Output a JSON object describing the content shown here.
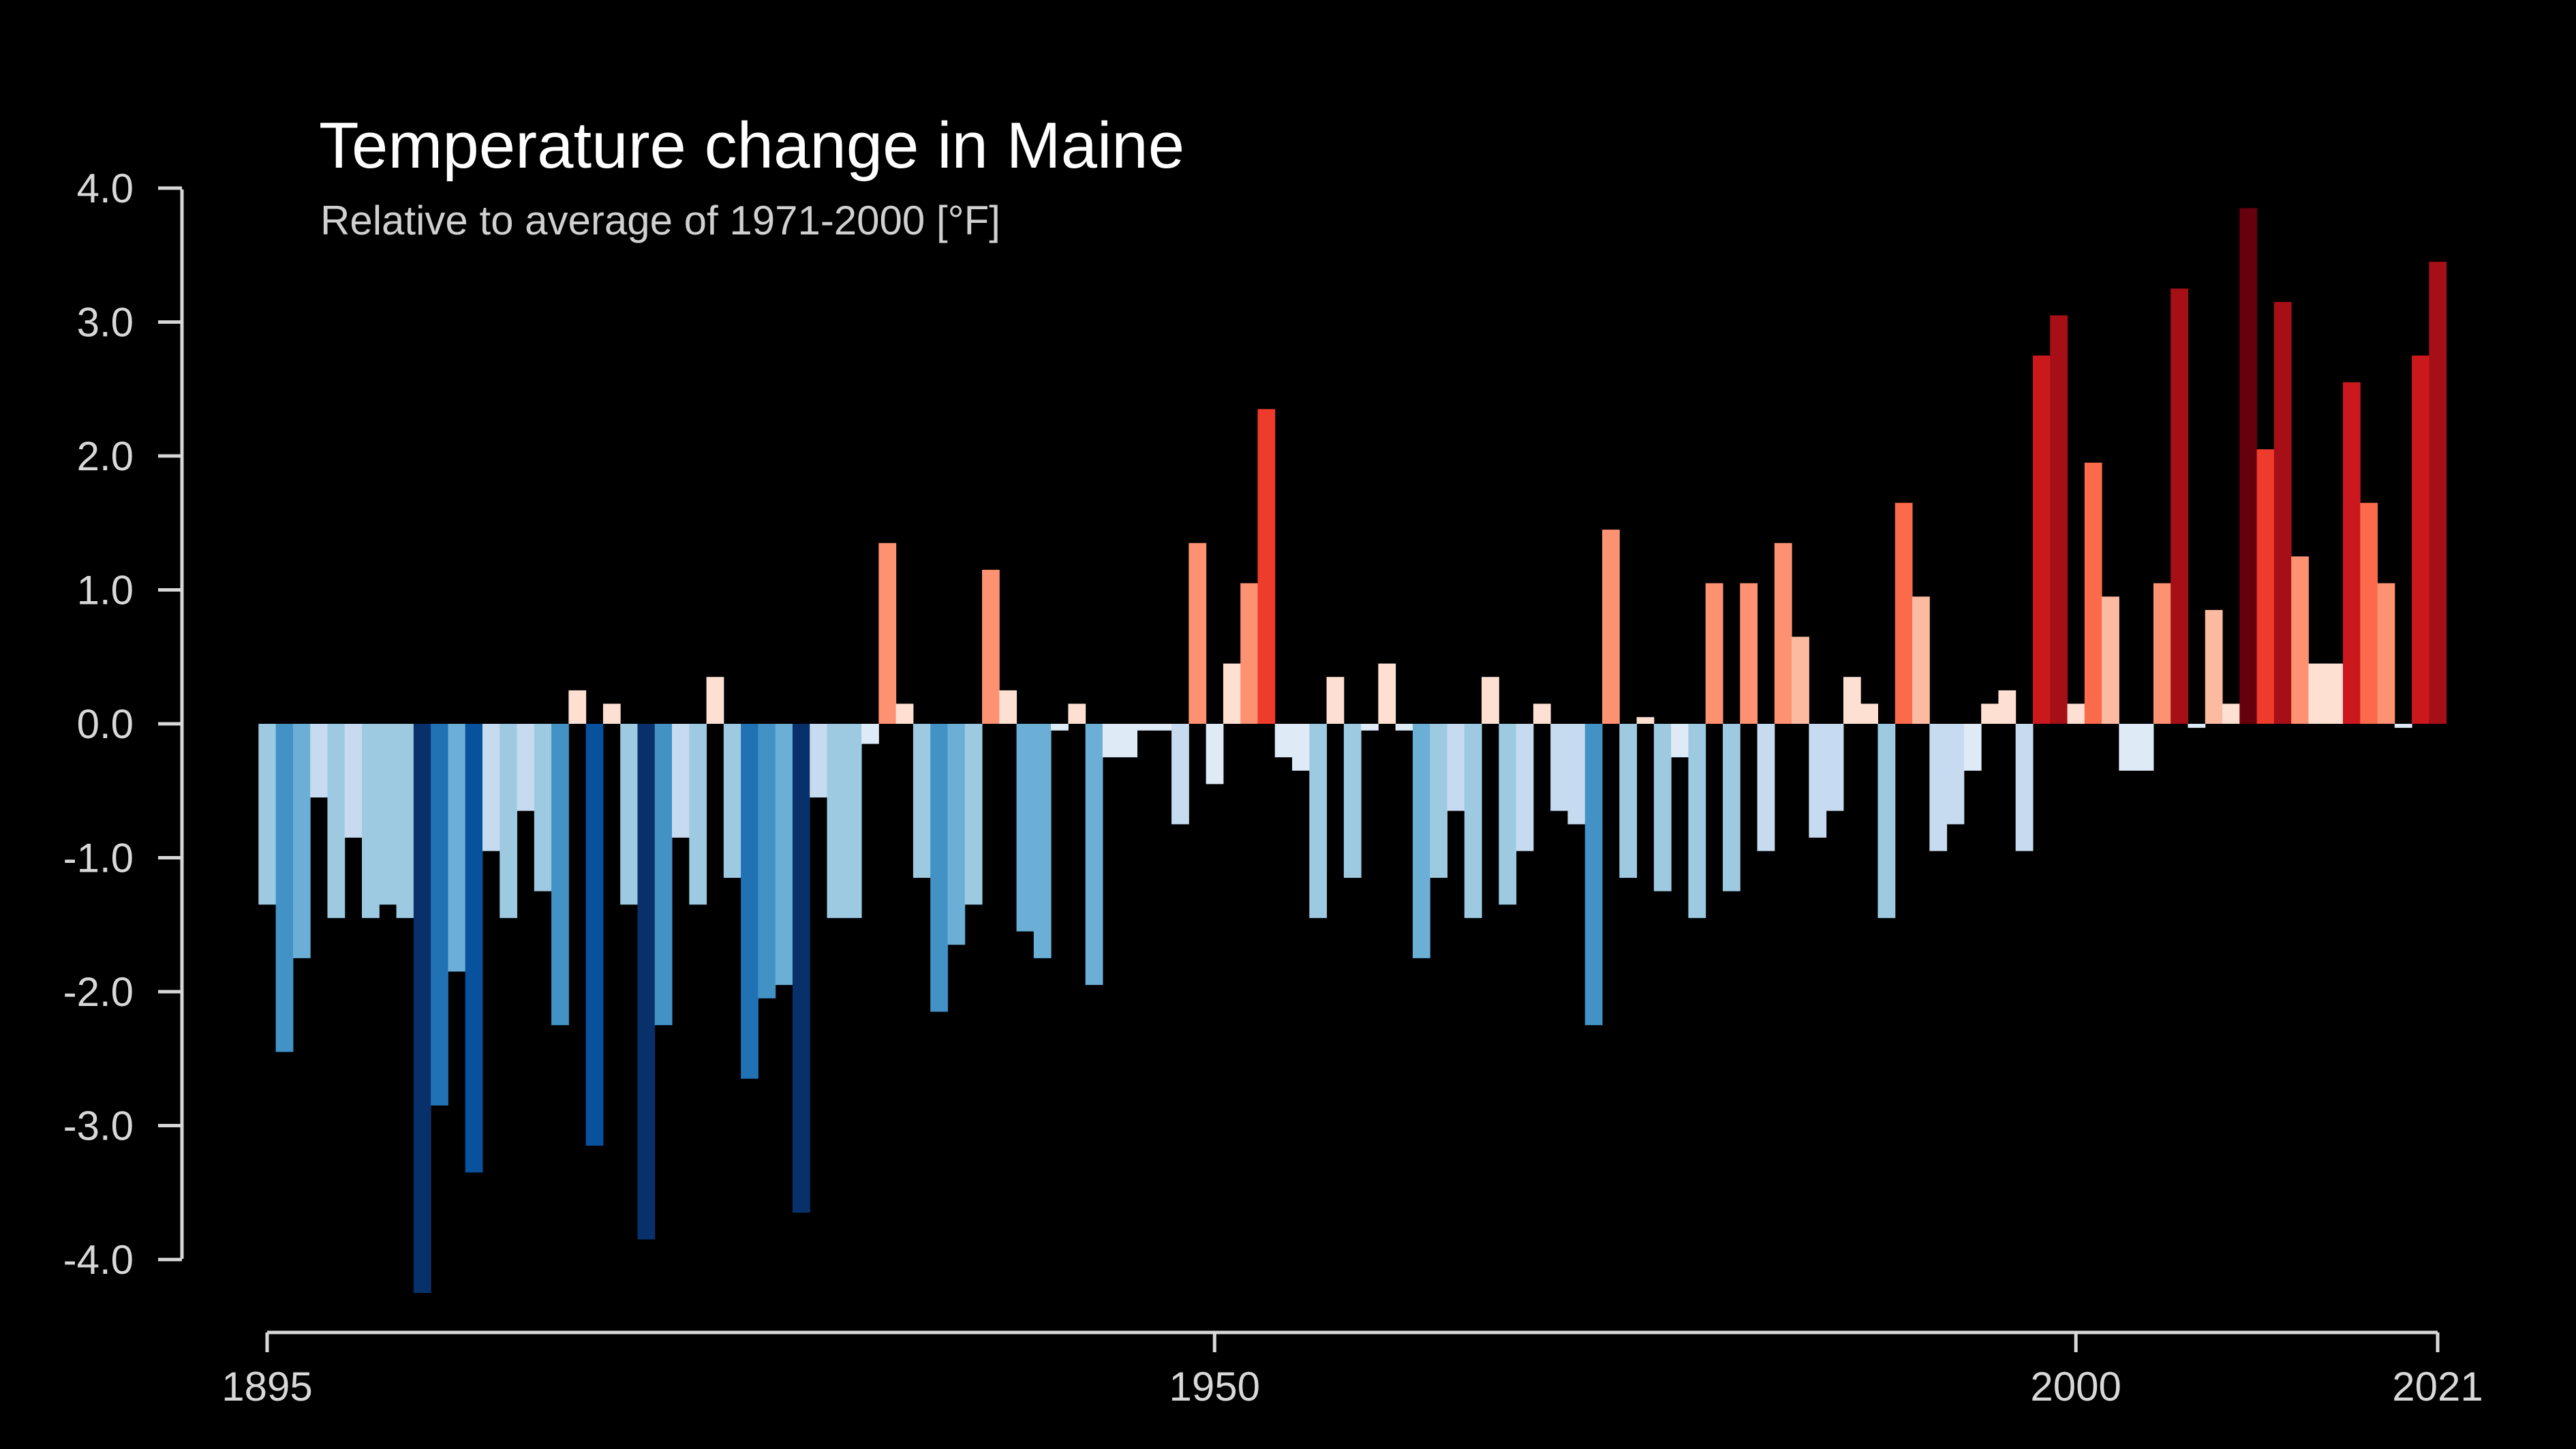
{
  "chart_data": {
    "type": "bar",
    "title": "Temperature change in Maine",
    "subtitle": "Relative to average of 1971-2000  [°F]",
    "xlabel": "",
    "ylabel": "",
    "ylim": [
      -4.0,
      4.0
    ],
    "yticks": [
      "4.0",
      "3.0",
      "2.0",
      "1.0",
      "0.0",
      "-1.0",
      "-2.0",
      "-3.0",
      "-4.0"
    ],
    "xticks": [
      "1895",
      "1950",
      "2000",
      "2021"
    ],
    "x_start": 1895,
    "x_end": 2021,
    "grid": false,
    "legend": "none",
    "color_scale": [
      "#08306b",
      "#08519c",
      "#2171b5",
      "#4292c6",
      "#6baed6",
      "#9ecae1",
      "#c6dbef",
      "#deebf7",
      "#fee0d2",
      "#fcbba1",
      "#fc9272",
      "#fb6a4a",
      "#ef3b2c",
      "#cb181d",
      "#a50f15",
      "#67000d"
    ],
    "background": "#000000",
    "series": [
      {
        "x": [
          1895,
          1896,
          1897,
          1898,
          1899,
          1900,
          1901,
          1902,
          1903,
          1904,
          1905,
          1906,
          1907,
          1908,
          1909,
          1910,
          1911,
          1912,
          1913,
          1914,
          1915,
          1916,
          1917,
          1918,
          1919,
          1920,
          1921,
          1922,
          1923,
          1924,
          1925,
          1926,
          1927,
          1928,
          1929,
          1930,
          1931,
          1932,
          1933,
          1934,
          1935,
          1936,
          1937,
          1938,
          1939,
          1940,
          1941,
          1942,
          1943,
          1944,
          1945,
          1946,
          1947,
          1948,
          1949,
          1950,
          1951,
          1952,
          1953,
          1954,
          1955,
          1956,
          1957,
          1958,
          1959,
          1960,
          1961,
          1962,
          1963,
          1964,
          1965,
          1966,
          1967,
          1968,
          1969,
          1970,
          1971,
          1972,
          1973,
          1974,
          1975,
          1976,
          1977,
          1978,
          1979,
          1980,
          1981,
          1982,
          1983,
          1984,
          1985,
          1986,
          1987,
          1988,
          1989,
          1990,
          1991,
          1992,
          1993,
          1994,
          1995,
          1996,
          1997,
          1998,
          1999,
          2000,
          2001,
          2002,
          2003,
          2004,
          2005,
          2006,
          2007,
          2008,
          2009,
          2010,
          2011,
          2012,
          2013,
          2014,
          2015,
          2016,
          2017,
          2018,
          2019,
          2020,
          2021
        ],
        "values": [
          -1.35,
          -2.45,
          -1.75,
          -0.55,
          -1.45,
          -0.85,
          -1.45,
          -1.35,
          -1.45,
          -4.25,
          -2.85,
          -1.85,
          -3.35,
          -0.95,
          -1.45,
          -0.65,
          -1.25,
          -2.25,
          0.25,
          -3.15,
          0.15,
          -1.35,
          -3.85,
          -2.25,
          -0.85,
          -1.35,
          0.35,
          -1.15,
          -2.65,
          -2.05,
          -1.95,
          -3.65,
          -0.55,
          -1.45,
          -1.45,
          -0.15,
          1.35,
          0.15,
          -1.15,
          -2.15,
          -1.65,
          -1.35,
          1.15,
          0.25,
          -1.55,
          -1.75,
          -0.05,
          0.15,
          -1.95,
          -0.25,
          -0.25,
          -0.05,
          -0.05,
          -0.75,
          1.35,
          -0.45,
          0.45,
          1.05,
          2.35,
          -0.25,
          -0.35,
          -1.45,
          0.35,
          -1.15,
          -0.05,
          0.45,
          -0.05,
          -1.75,
          -1.15,
          -0.65,
          -1.45,
          0.35,
          -1.35,
          -0.95,
          0.15,
          -0.65,
          -0.75,
          -2.25,
          1.45,
          -1.15,
          0.05,
          -1.25,
          -0.25,
          -1.45,
          1.05,
          -1.25,
          1.05,
          -0.95,
          1.35,
          0.65,
          -0.85,
          -0.65,
          0.35,
          0.15,
          -1.45,
          1.65,
          0.95,
          -0.95,
          -0.75,
          -0.35,
          0.15,
          0.25,
          -0.95,
          2.75,
          3.05,
          0.15,
          1.95,
          0.95,
          -0.35,
          -0.35,
          1.05,
          3.25,
          -0.03,
          0.85,
          0.15,
          3.85,
          2.05,
          3.15,
          1.25,
          0.45,
          0.45,
          2.55,
          1.65,
          1.05,
          -0.03,
          2.75,
          3.45
        ]
      }
    ]
  }
}
